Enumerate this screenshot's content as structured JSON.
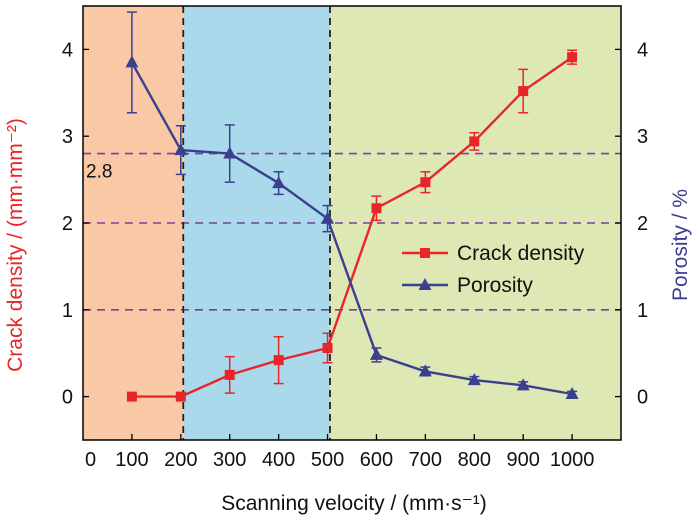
{
  "chart_data": {
    "type": "line",
    "xlabel": "Scanning velocity / (mm·s⁻¹)",
    "ylabel_left": "Crack density / (mm·mm⁻²)",
    "ylabel_right": "Porosity / %",
    "xlim": [
      0,
      1100
    ],
    "ylim_left": [
      -0.5,
      4.5
    ],
    "ylim_right": [
      -0.5,
      4.5
    ],
    "x_ticks": [
      0,
      100,
      200,
      300,
      400,
      500,
      600,
      700,
      800,
      900,
      1000
    ],
    "y_ticks": [
      0,
      1,
      2,
      3,
      4
    ],
    "regions": [
      {
        "x0": 0,
        "x1": 205,
        "color": "#f9c9a5"
      },
      {
        "x0": 205,
        "x1": 505,
        "color": "#a9d9ea"
      },
      {
        "x0": 505,
        "x1": 1100,
        "color": "#dde8b4"
      }
    ],
    "vertical_dashed_lines": [
      205,
      505
    ],
    "horizontal_dashed_lines": [
      1,
      2,
      2.8
    ],
    "annotations": [
      {
        "text": "2.8",
        "x": 0,
        "y": 2.8
      }
    ],
    "x": [
      100,
      200,
      300,
      400,
      500,
      600,
      700,
      800,
      900,
      1000
    ],
    "series": [
      {
        "name": "Crack density",
        "axis": "left",
        "color": "#e8262a",
        "marker": "square",
        "values": [
          0,
          0,
          0.25,
          0.42,
          0.56,
          2.17,
          2.47,
          2.94,
          3.52,
          3.91
        ],
        "errors": [
          0,
          0,
          0.21,
          0.27,
          0.17,
          0.14,
          0.12,
          0.1,
          0.25,
          0.08
        ]
      },
      {
        "name": "Porosity",
        "axis": "right",
        "color": "#3b3f8f",
        "marker": "triangle",
        "values": [
          3.85,
          2.84,
          2.8,
          2.46,
          2.05,
          0.48,
          0.29,
          0.19,
          0.13,
          0.03
        ],
        "errors": [
          0.58,
          0.28,
          0.33,
          0.13,
          0.15,
          0.08,
          0.05,
          0.04,
          0.04,
          0.03
        ]
      }
    ],
    "legend_position": "center-right",
    "colors": {
      "left_label": "#e8262a",
      "right_label": "#3b3f8f",
      "guide_lines": "#7b3f9b",
      "dividers": "#222222"
    }
  }
}
